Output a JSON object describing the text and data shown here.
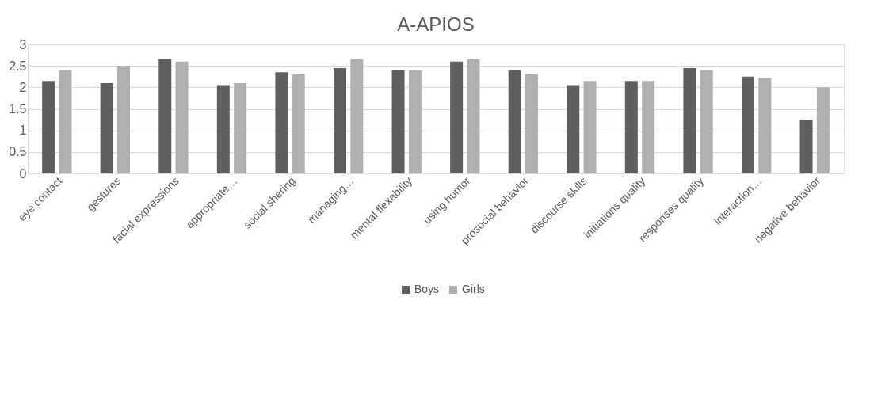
{
  "chart_data": {
    "type": "bar",
    "title": "A-APIOS",
    "categories": [
      "eye contact",
      "gestures",
      "facial expressions",
      "appropriate…",
      "social shering",
      "managing…",
      "mental flexability",
      "using humor",
      "prosocial behavior",
      "discourse skills",
      "initiations quality",
      "responses quality",
      "interaction…",
      "negative behavior"
    ],
    "series": [
      {
        "name": "Boys",
        "color": "#5f5f5f",
        "values": [
          2.15,
          2.1,
          2.65,
          2.05,
          2.35,
          2.45,
          2.4,
          2.6,
          2.4,
          2.05,
          2.15,
          2.45,
          2.25,
          1.25
        ]
      },
      {
        "name": "Girls",
        "color": "#b0b0b0",
        "values": [
          2.4,
          2.5,
          2.6,
          2.1,
          2.3,
          2.65,
          2.4,
          2.65,
          2.3,
          2.15,
          2.15,
          2.4,
          2.22,
          2.0
        ]
      }
    ],
    "ylim": [
      0,
      3
    ],
    "yticks": [
      0,
      0.5,
      1,
      1.5,
      2,
      2.5,
      3
    ],
    "grid": "y",
    "legend": "bottom"
  }
}
